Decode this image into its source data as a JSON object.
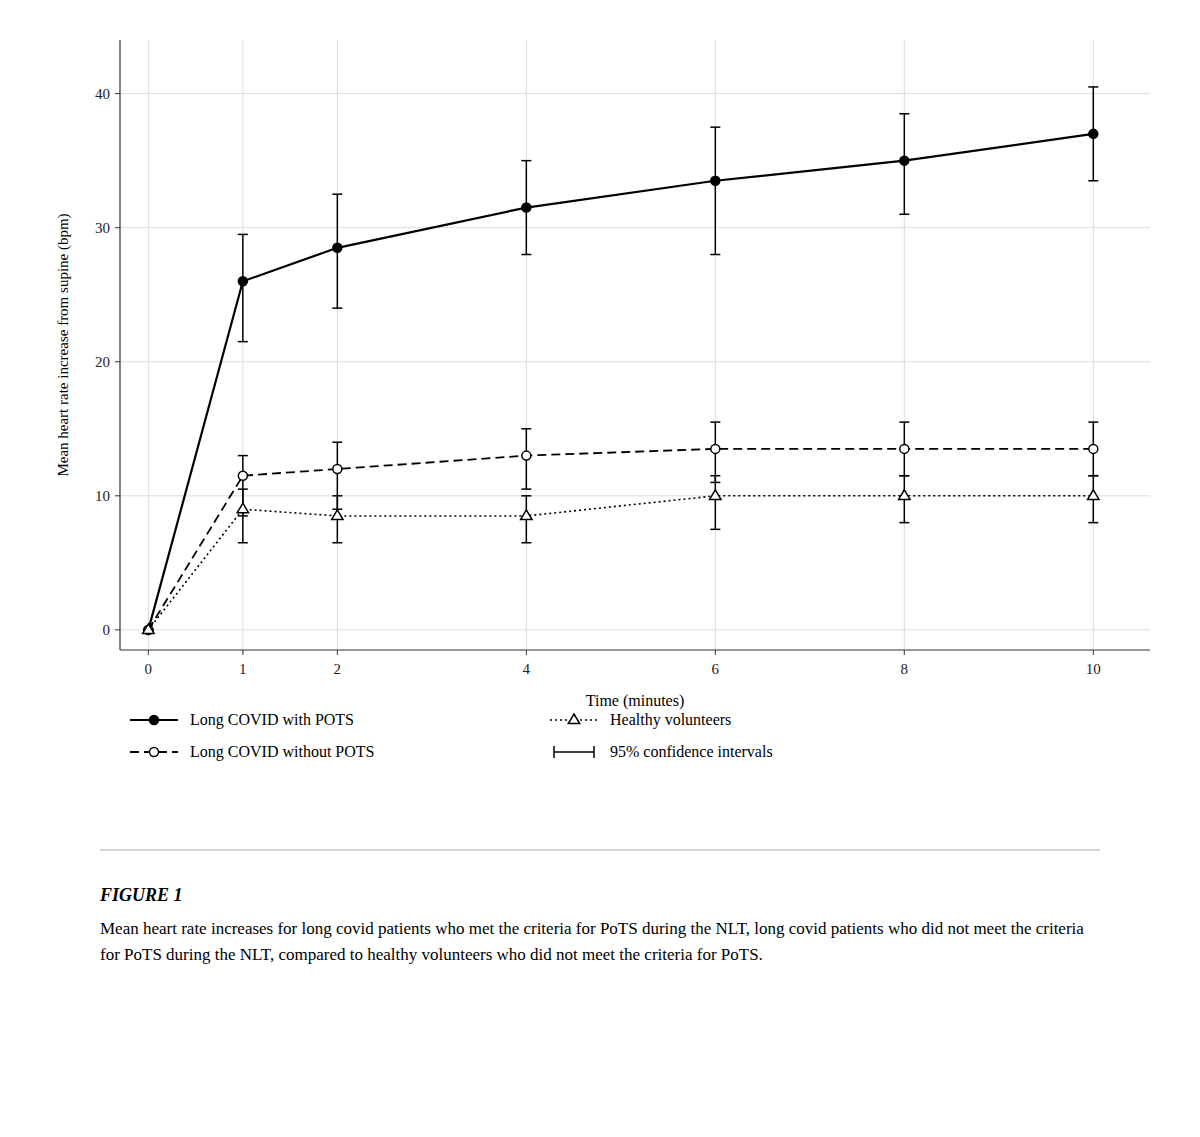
{
  "chart_data": {
    "type": "line",
    "x": [
      0,
      1,
      2,
      4,
      6,
      8,
      10
    ],
    "series": [
      {
        "name": "Long COVID with POTS",
        "color": "#000000",
        "line_style": "solid",
        "marker": "circle",
        "values": [
          0,
          26,
          28.5,
          31.5,
          33.5,
          35.0,
          37.0
        ],
        "error_low": [
          0,
          4.5,
          4.5,
          3.5,
          5.5,
          4.0,
          3.5
        ],
        "error_high": [
          0,
          3.5,
          4.0,
          3.5,
          4.0,
          3.5,
          3.5
        ]
      },
      {
        "name": "Long COVID without POTS",
        "color": "#000000",
        "line_style": "dashed",
        "marker": "circle-open",
        "values": [
          0,
          11.5,
          12.0,
          13.0,
          13.5,
          13.5,
          13.5
        ],
        "error_low": [
          0,
          3.0,
          3.0,
          2.5,
          2.5,
          2.0,
          2.0
        ],
        "error_high": [
          0,
          1.5,
          2.0,
          2.0,
          2.0,
          2.0,
          2.0
        ]
      },
      {
        "name": "Healthy volunteers",
        "color": "#000000",
        "line_style": "dotted",
        "marker": "triangle-open",
        "values": [
          0,
          9.0,
          8.5,
          8.5,
          10.0,
          10.0,
          10.0
        ],
        "error_low": [
          0,
          2.5,
          2.0,
          2.0,
          2.5,
          2.0,
          2.0
        ],
        "error_high": [
          0,
          1.5,
          1.5,
          1.5,
          1.5,
          1.5,
          1.5
        ]
      }
    ],
    "error_label": "95% confidence intervals",
    "xlabel": "Time (minutes)",
    "ylabel": "Mean heart rate increase from supine (bpm)",
    "xlim": [
      -0.3,
      10.6
    ],
    "ylim": [
      -1.5,
      44
    ],
    "xticks": [
      0,
      1,
      2,
      4,
      6,
      8,
      10
    ],
    "yticks": [
      0,
      10,
      20,
      30,
      40
    ],
    "grid": true,
    "legend": "bottom",
    "caption_label": "FIGURE 1",
    "caption": "Mean heart rate increases for long covid patients who met the criteria for PoTS during the NLT, long covid patients who did not meet the criteria for PoTS during the NLT, compared to healthy volunteers who did not meet the criteria for PoTS."
  }
}
